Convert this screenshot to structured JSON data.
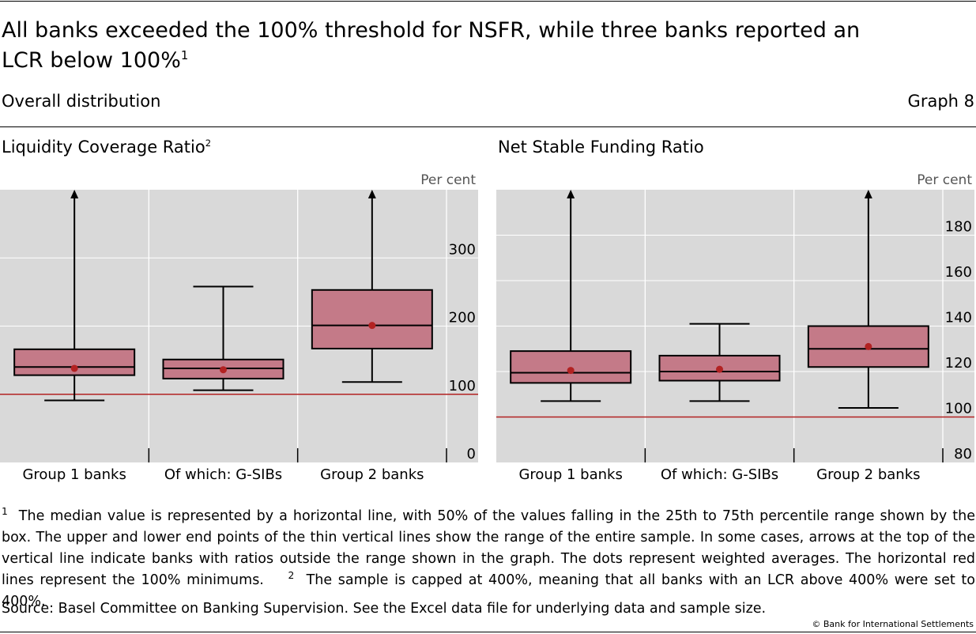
{
  "header": {
    "title": "All banks exceeded the 100% threshold for NSFR, while three banks reported an LCR below 100%",
    "title_note": "1",
    "subtitle": "Overall distribution",
    "graph_label": "Graph 8"
  },
  "colors": {
    "panel_bg": "#d9d9d9",
    "box_fill": "#c47a88",
    "threshold_line": "#b22222",
    "mean_dot": "#b22222"
  },
  "chart_data": [
    {
      "type": "box",
      "title": "Liquidity Coverage Ratio",
      "title_note": "2",
      "unit_label": "Per cent",
      "ylim": [
        0,
        400
      ],
      "yticks": [
        0,
        100,
        200,
        300
      ],
      "threshold": 100,
      "categories": [
        "Group 1 banks",
        "Of which: G-SIBs",
        "Group 2 banks"
      ],
      "boxes": [
        {
          "whisker_low": 91,
          "q1": 128,
          "median": 140,
          "q3": 166,
          "whisker_high": 400,
          "mean": 138,
          "arrow": true
        },
        {
          "whisker_low": 106,
          "q1": 123,
          "median": 138,
          "q3": 151,
          "whisker_high": 258,
          "mean": 136,
          "arrow": false
        },
        {
          "whisker_low": 118,
          "q1": 167,
          "median": 201,
          "q3": 253,
          "whisker_high": 400,
          "mean": 201,
          "arrow": true
        }
      ]
    },
    {
      "type": "box",
      "title": "Net Stable Funding Ratio",
      "unit_label": "Per cent",
      "ylim": [
        80,
        200
      ],
      "yticks": [
        80,
        100,
        120,
        140,
        160,
        180
      ],
      "threshold": 100,
      "categories": [
        "Group 1 banks",
        "Of which: G-SIBs",
        "Group 2 banks"
      ],
      "boxes": [
        {
          "whisker_low": 107,
          "q1": 115,
          "median": 119.5,
          "q3": 129,
          "whisker_high": 200,
          "mean": 120.5,
          "arrow": true
        },
        {
          "whisker_low": 107,
          "q1": 116,
          "median": 120,
          "q3": 127,
          "whisker_high": 141,
          "mean": 121,
          "arrow": false
        },
        {
          "whisker_low": 104,
          "q1": 122,
          "median": 130,
          "q3": 140,
          "whisker_high": 200,
          "mean": 131,
          "arrow": true
        }
      ]
    }
  ],
  "footnote": {
    "marker1": "1",
    "text1": "The median value is represented by a horizontal line, with 50% of the values falling in the 25th to 75th percentile range shown by the box. The upper and lower end points of the thin vertical lines show the range of the entire sample. In some cases, arrows at the top of the vertical line indicate banks with ratios outside the range shown in the graph. The dots represent weighted averages. The horizontal red lines represent the 100% minimums.",
    "marker2": "2",
    "text2": "The sample is capped at 400%, meaning that all banks with an LCR above 400% were set to 400%."
  },
  "source": "Source: Basel Committee on Banking Supervision. See the Excel data file for underlying data and sample size.",
  "copyright": "© Bank for International Settlements"
}
